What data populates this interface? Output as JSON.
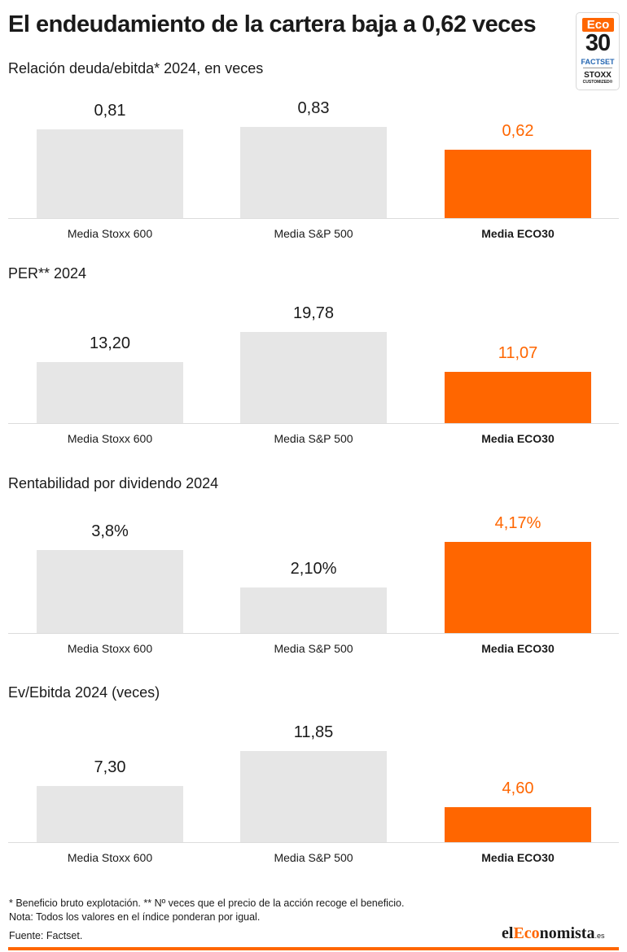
{
  "title": "El endeudamiento de la cartera baja a 0,62 veces",
  "badge": {
    "eco": "Eco",
    "number": "30",
    "factset": "FACTSET",
    "stoxx": "STOXX",
    "customized": "CUSTOMIZED®"
  },
  "colors": {
    "highlight": "#ff6600",
    "bar": "#e6e6e6"
  },
  "chart_data": [
    {
      "type": "bar",
      "title": "Relación deuda/ebitda* 2024, en veces",
      "categories": [
        "Media Stoxx 600",
        "Media S&P 500",
        "Media ECO30"
      ],
      "values": [
        0.81,
        0.83,
        0.62
      ],
      "labels": [
        "0,81",
        "0,83",
        "0,62"
      ],
      "highlight": "Media ECO30",
      "ylim": [
        0,
        0.83
      ]
    },
    {
      "type": "bar",
      "title": "PER** 2024",
      "categories": [
        "Media Stoxx 600",
        "Media S&P 500",
        "Media ECO30"
      ],
      "values": [
        13.2,
        19.78,
        11.07
      ],
      "labels": [
        "13,20",
        "19,78",
        "11,07"
      ],
      "highlight": "Media ECO30",
      "ylim": [
        0,
        19.78
      ]
    },
    {
      "type": "bar",
      "title": "Rentabilidad por dividendo 2024",
      "categories": [
        "Media Stoxx 600",
        "Media S&P 500",
        "Media ECO30"
      ],
      "values": [
        3.8,
        2.1,
        4.17
      ],
      "labels": [
        "3,8%",
        "2,10%",
        "4,17%"
      ],
      "highlight": "Media ECO30",
      "ylim": [
        0,
        4.17
      ]
    },
    {
      "type": "bar",
      "title": "Ev/Ebitda 2024 (veces)",
      "categories": [
        "Media Stoxx 600",
        "Media S&P 500",
        "Media ECO30"
      ],
      "values": [
        7.3,
        11.85,
        4.6
      ],
      "labels": [
        "7,30",
        "11,85",
        "4,60"
      ],
      "highlight": "Media ECO30",
      "ylim": [
        0,
        11.85
      ]
    }
  ],
  "notes": {
    "line1": "* Beneficio bruto explotación. ** Nº veces que el precio de la acción recoge el beneficio.",
    "line2": "Nota: Todos los valores en el índice ponderan por igual."
  },
  "source": "Fuente: Factset.",
  "brand": {
    "prefix": "el",
    "accent": "Eco",
    "rest": "nomista",
    "suffix": ".es"
  }
}
